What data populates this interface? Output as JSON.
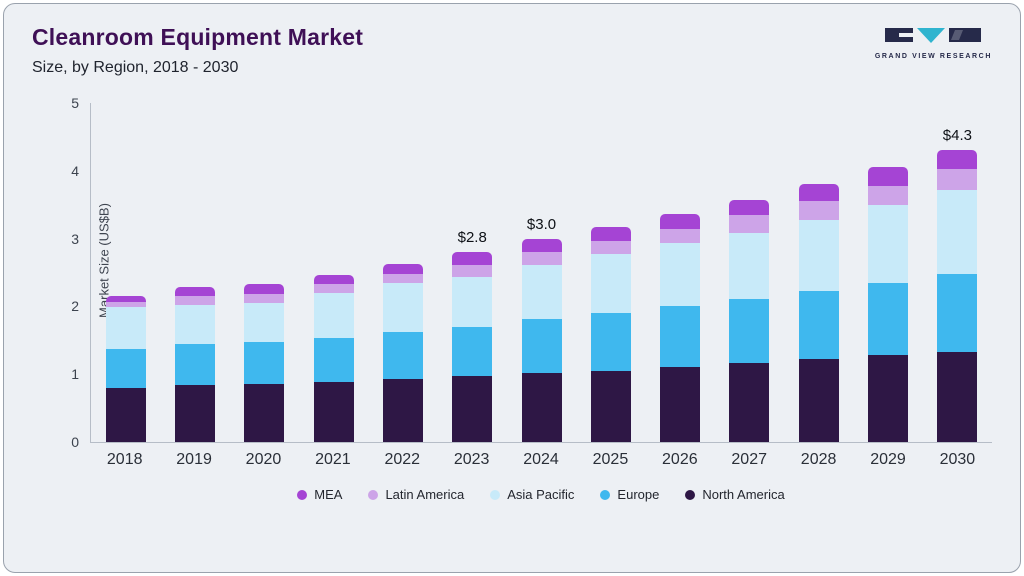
{
  "header": {
    "title": "Cleanroom Equipment Market",
    "subtitle": "Size, by Region, 2018 - 2030"
  },
  "logo": {
    "text": "GRAND VIEW RESEARCH",
    "accent_color": "#2fb4cf",
    "dark_color": "#262a4a"
  },
  "chart_data": {
    "type": "bar",
    "stacked": true,
    "title": "Cleanroom Equipment Market Size, by Region, 2018 - 2030",
    "ylabel": "Market Size (US$B)",
    "xlabel": "",
    "ylim": [
      0,
      5
    ],
    "yticks": [
      0,
      1,
      2,
      3,
      4,
      5
    ],
    "grid": false,
    "legend_position": "bottom",
    "categories": [
      "2018",
      "2019",
      "2020",
      "2021",
      "2022",
      "2023",
      "2024",
      "2025",
      "2026",
      "2027",
      "2028",
      "2029",
      "2030"
    ],
    "series": [
      {
        "name": "North America",
        "color": "#2e1745",
        "values": [
          0.8,
          0.84,
          0.85,
          0.88,
          0.93,
          0.97,
          1.02,
          1.05,
          1.1,
          1.16,
          1.22,
          1.28,
          1.33
        ]
      },
      {
        "name": "Europe",
        "color": "#3fb8ee",
        "values": [
          0.57,
          0.6,
          0.62,
          0.66,
          0.69,
          0.73,
          0.79,
          0.85,
          0.91,
          0.95,
          1.0,
          1.07,
          1.15
        ]
      },
      {
        "name": "Asia Pacific",
        "color": "#c8eaf9",
        "values": [
          0.62,
          0.58,
          0.58,
          0.66,
          0.72,
          0.73,
          0.8,
          0.87,
          0.92,
          0.98,
          1.05,
          1.14,
          1.24
        ]
      },
      {
        "name": "Latin America",
        "color": "#cda4e8",
        "values": [
          0.08,
          0.13,
          0.14,
          0.13,
          0.14,
          0.18,
          0.19,
          0.2,
          0.21,
          0.26,
          0.28,
          0.29,
          0.3
        ]
      },
      {
        "name": "MEA",
        "color": "#a544d4",
        "values": [
          0.08,
          0.13,
          0.14,
          0.14,
          0.14,
          0.19,
          0.2,
          0.2,
          0.22,
          0.22,
          0.25,
          0.27,
          0.28
        ]
      }
    ],
    "totals": [
      2.15,
      2.28,
      2.33,
      2.47,
      2.62,
      2.8,
      3.0,
      3.17,
      3.36,
      3.57,
      3.8,
      4.05,
      4.3
    ],
    "bar_labels": [
      "",
      "",
      "",
      "",
      "",
      "$2.8",
      "$3.0",
      "",
      "",
      "",
      "",
      "",
      "$4.3"
    ],
    "legend_order": [
      "MEA",
      "Latin America",
      "Asia Pacific",
      "Europe",
      "North America"
    ]
  }
}
